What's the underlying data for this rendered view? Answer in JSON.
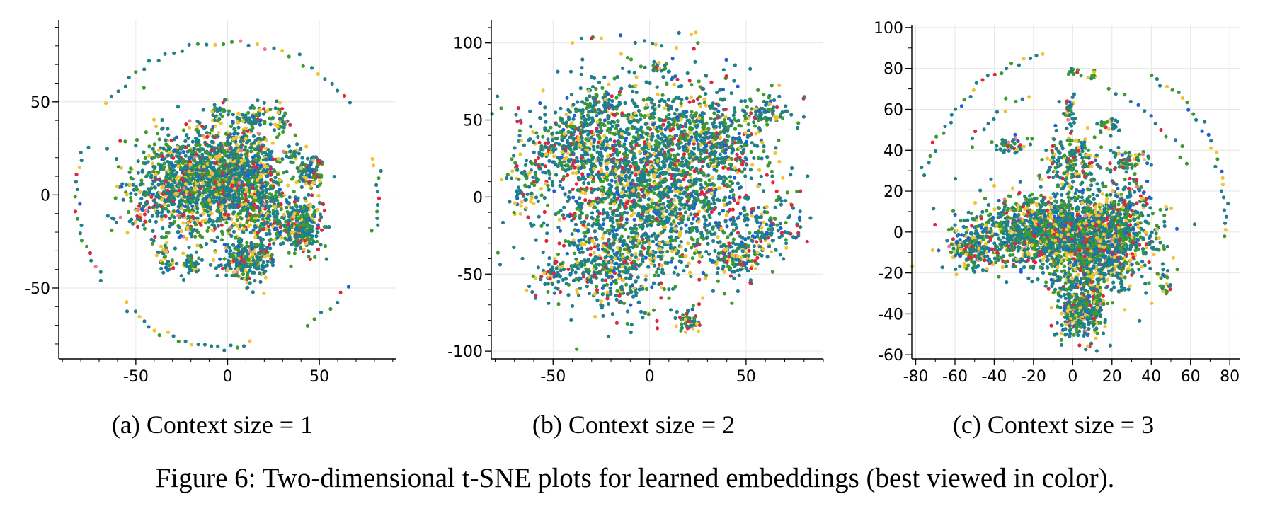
{
  "figure": {
    "caption": "Figure 6: Two-dimensional t-SNE plots for learned embeddings (best viewed in color)."
  },
  "palette": {
    "teal": "#1f7f8c",
    "green": "#3f9a2c",
    "yellow": "#f1c232",
    "red": "#e0263f",
    "blue": "#1f5fd6",
    "pink": "#f27a8f"
  },
  "chart_data": [
    {
      "type": "scatter",
      "subcaption": "(a) Context size = 1",
      "xlabel": "",
      "ylabel": "",
      "xlim": [
        -92,
        92
      ],
      "ylim": [
        -88,
        94
      ],
      "xticks": [
        -50,
        0,
        50
      ],
      "yticks": [
        -50,
        0,
        50
      ],
      "grid": true,
      "clusters": [
        {
          "cx": -20,
          "cy": 5,
          "sx": 16,
          "sy": 14,
          "n": 1100
        },
        {
          "cx": 5,
          "cy": 12,
          "sx": 12,
          "sy": 13,
          "n": 800
        },
        {
          "cx": 20,
          "cy": -8,
          "sx": 10,
          "sy": 10,
          "n": 300
        },
        {
          "cx": 40,
          "cy": -17,
          "sx": 6,
          "sy": 7,
          "n": 250
        },
        {
          "cx": 10,
          "cy": -35,
          "sx": 7,
          "sy": 6,
          "n": 250
        },
        {
          "cx": 45,
          "cy": 12,
          "sx": 4,
          "sy": 4,
          "n": 110
        },
        {
          "cx": 15,
          "cy": 42,
          "sx": 5,
          "sy": 3,
          "n": 60
        },
        {
          "cx": -5,
          "cy": 45,
          "sx": 2,
          "sy": 2,
          "n": 25
        },
        {
          "cx": -20,
          "cy": -38,
          "sx": 3,
          "sy": 4,
          "n": 40
        },
        {
          "cx": -35,
          "cy": -30,
          "sx": 2,
          "sy": 2,
          "n": 15
        },
        {
          "cx": 30,
          "cy": 40,
          "sx": 3,
          "sy": 4,
          "n": 25
        },
        {
          "cx": 35,
          "cy": 22,
          "sx": 3,
          "sy": 2,
          "n": 20
        },
        {
          "cx": -50,
          "cy": -12,
          "sx": 2,
          "sy": 3,
          "n": 12
        },
        {
          "cx": -33,
          "cy": -38,
          "sx": 2,
          "sy": 2,
          "n": 18
        }
      ],
      "arcs": [
        {
          "cx": 0,
          "cy": 0,
          "r": 82,
          "a0": 35,
          "a1": 145,
          "n": 34
        },
        {
          "cx": 0,
          "cy": 0,
          "r": 82,
          "a0": 160,
          "a1": 215,
          "n": 20
        },
        {
          "cx": 0,
          "cy": 0,
          "r": 82,
          "a0": 225,
          "a1": 280,
          "n": 22
        },
        {
          "cx": 0,
          "cy": 0,
          "r": 82,
          "a0": 300,
          "a1": 325,
          "n": 7
        },
        {
          "cx": 0,
          "cy": 0,
          "r": 82,
          "a0": 345,
          "a1": 375,
          "n": 12
        }
      ],
      "mix": [
        0.48,
        0.22,
        0.16,
        0.08,
        0.05,
        0.01
      ],
      "seed": 11
    },
    {
      "type": "scatter",
      "subcaption": "(b) Context size = 2",
      "xlabel": "",
      "ylabel": "",
      "xlim": [
        -82,
        90
      ],
      "ylim": [
        -105,
        115
      ],
      "xticks": [
        -50,
        0,
        50
      ],
      "yticks": [
        -100,
        -50,
        0,
        50,
        100
      ],
      "grid": true,
      "clusters": [
        {
          "cx": 0,
          "cy": 10,
          "sx": 28,
          "sy": 32,
          "n": 2300
        },
        {
          "cx": -20,
          "cy": -45,
          "sx": 12,
          "sy": 14,
          "n": 300
        },
        {
          "cx": 30,
          "cy": 40,
          "sx": 15,
          "sy": 12,
          "n": 300
        },
        {
          "cx": -40,
          "cy": 35,
          "sx": 12,
          "sy": 10,
          "n": 250
        },
        {
          "cx": -50,
          "cy": -50,
          "sx": 5,
          "sy": 6,
          "n": 70
        },
        {
          "cx": 20,
          "cy": -80,
          "sx": 3,
          "sy": 4,
          "n": 45
        },
        {
          "cx": 45,
          "cy": -40,
          "sx": 6,
          "sy": 6,
          "n": 120
        },
        {
          "cx": 60,
          "cy": 55,
          "sx": 6,
          "sy": 5,
          "n": 70
        },
        {
          "cx": -25,
          "cy": 60,
          "sx": 6,
          "sy": 5,
          "n": 70
        },
        {
          "cx": 5,
          "cy": 85,
          "sx": 2,
          "sy": 2,
          "n": 15
        },
        {
          "cx": 60,
          "cy": -20,
          "sx": 10,
          "sy": 12,
          "n": 120
        },
        {
          "cx": -65,
          "cy": 10,
          "sx": 5,
          "sy": 12,
          "n": 60
        }
      ],
      "singles": [
        [
          -40,
          100
        ],
        [
          -30,
          103
        ],
        [
          -25,
          103
        ],
        [
          -15,
          105
        ],
        [
          25,
          100
        ]
      ],
      "mix": [
        0.5,
        0.22,
        0.12,
        0.1,
        0.06,
        0.0
      ],
      "seed": 22
    },
    {
      "type": "scatter",
      "subcaption": "(c) Context size = 3",
      "xlabel": "",
      "ylabel": "",
      "xlim": [
        -82,
        85
      ],
      "ylim": [
        -62,
        101
      ],
      "xticks": [
        -80,
        -60,
        -40,
        -20,
        0,
        20,
        40,
        60,
        80
      ],
      "yticks": [
        -60,
        -40,
        -20,
        0,
        20,
        40,
        60,
        80,
        100
      ],
      "grid": true,
      "clusters": [
        {
          "cx": -10,
          "cy": 0,
          "sx": 20,
          "sy": 9,
          "n": 1500
        },
        {
          "cx": 15,
          "cy": -5,
          "sx": 12,
          "sy": 12,
          "n": 900
        },
        {
          "cx": 5,
          "cy": -35,
          "sx": 6,
          "sy": 8,
          "n": 450
        },
        {
          "cx": -52,
          "cy": -8,
          "sx": 5,
          "sy": 5,
          "n": 200
        },
        {
          "cx": 0,
          "cy": 35,
          "sx": 8,
          "sy": 8,
          "n": 220
        },
        {
          "cx": -30,
          "cy": 42,
          "sx": 5,
          "sy": 2,
          "n": 40
        },
        {
          "cx": 28,
          "cy": 35,
          "sx": 5,
          "sy": 3,
          "n": 60
        },
        {
          "cx": 18,
          "cy": 52,
          "sx": 3,
          "sy": 2,
          "n": 30
        },
        {
          "cx": -2,
          "cy": 60,
          "sx": 2,
          "sy": 4,
          "n": 30
        },
        {
          "cx": 0,
          "cy": 78,
          "sx": 1,
          "sy": 1,
          "n": 10
        },
        {
          "cx": 10,
          "cy": 76,
          "sx": 2,
          "sy": 1,
          "n": 10
        },
        {
          "cx": 47,
          "cy": -25,
          "sx": 2,
          "sy": 4,
          "n": 20
        },
        {
          "cx": 30,
          "cy": 15,
          "sx": 5,
          "sy": 5,
          "n": 60
        }
      ],
      "arcs": [
        {
          "cx": 0,
          "cy": 10,
          "r": 78,
          "a0": 100,
          "a1": 168,
          "n": 28
        },
        {
          "cx": 0,
          "cy": 10,
          "r": 78,
          "a0": 350,
          "a1": 420,
          "n": 30
        },
        {
          "cx": 0,
          "cy": 10,
          "r": 62,
          "a0": 110,
          "a1": 150,
          "n": 12
        },
        {
          "cx": 0,
          "cy": 10,
          "r": 62,
          "a0": 20,
          "a1": 75,
          "n": 14
        }
      ],
      "mix": [
        0.46,
        0.25,
        0.15,
        0.08,
        0.05,
        0.01
      ],
      "seed": 33
    }
  ]
}
